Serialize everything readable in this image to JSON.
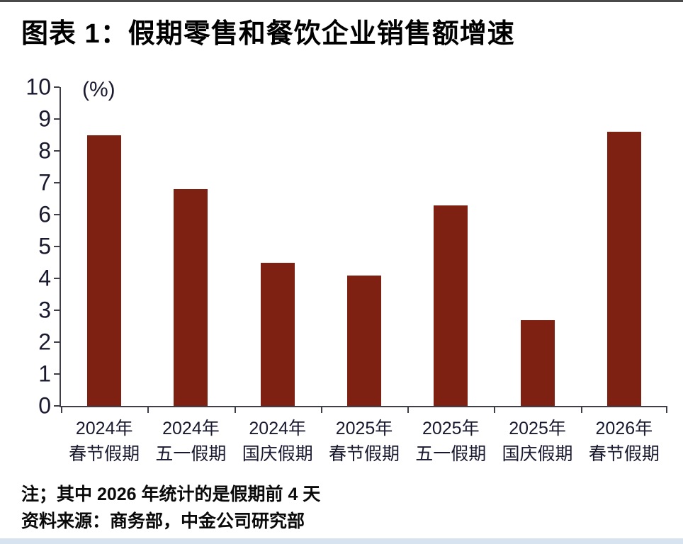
{
  "header": {
    "title": "图表 1：假期零售和餐饮企业销售额增速"
  },
  "footer": {
    "note": "注；其中 2026 年统计的是假期前 4 天",
    "source": "资料来源：商务部，中金公司研究部"
  },
  "chart_data": {
    "type": "bar",
    "title": "图表 1：假期零售和餐饮企业销售额增速",
    "unit_label": "(%)",
    "categories": [
      "2024年春节假期",
      "2024年五一假期",
      "2024年国庆假期",
      "2025年春节假期",
      "2025年五一假期",
      "2025年国庆假期",
      "2026年春节假期"
    ],
    "category_lines": [
      [
        "2024年",
        "春节假期"
      ],
      [
        "2024年",
        "五一假期"
      ],
      [
        "2024年",
        "国庆假期"
      ],
      [
        "2025年",
        "春节假期"
      ],
      [
        "2025年",
        "五一假期"
      ],
      [
        "2025年",
        "国庆假期"
      ],
      [
        "2026年",
        "春节假期"
      ]
    ],
    "values": [
      8.5,
      6.8,
      4.5,
      4.1,
      6.3,
      2.7,
      8.6
    ],
    "ylim": [
      0,
      10
    ],
    "ytick_step": 1,
    "yticks": [
      0,
      1,
      2,
      3,
      4,
      5,
      6,
      7,
      8,
      9,
      10
    ],
    "xlabel": "",
    "ylabel": "(%)",
    "grid": false,
    "legend": "none",
    "bar_color": "#7E2112",
    "axis_color": "#3f3f4a",
    "tick_label_color": "#191930"
  }
}
